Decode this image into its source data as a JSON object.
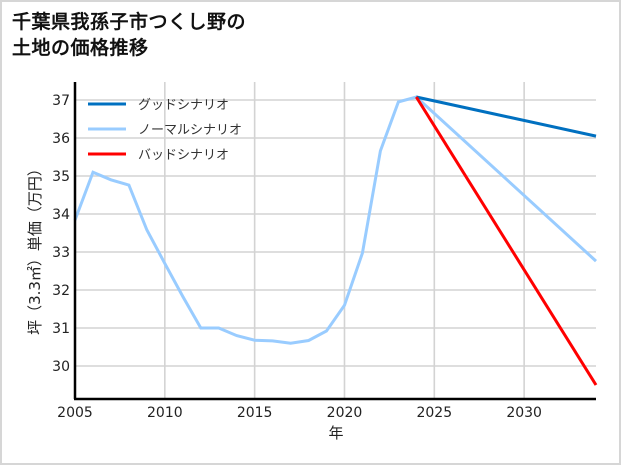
{
  "title": "千葉県我孫子市つくし野の\n土地の価格推移",
  "chart_data": {
    "type": "line",
    "title": "千葉県我孫子市つくし野の土地の価格推移",
    "xlabel": "年",
    "ylabel": "坪（3.3㎡）単価（万円）",
    "xlim": [
      2005,
      2034
    ],
    "ylim": [
      29.1,
      37.45
    ],
    "xticks": [
      2005,
      2010,
      2015,
      2020,
      2025,
      2030
    ],
    "yticks": [
      30,
      31,
      32,
      33,
      34,
      35,
      36,
      37
    ],
    "grid": true,
    "legend_position": "upper left",
    "series": [
      {
        "name": "グッドシナリオ",
        "color": "#0070c0",
        "x": [
          2024,
          2034
        ],
        "values": [
          37.08,
          36.05
        ]
      },
      {
        "name": "ノーマルシナリオ",
        "color": "#99ccff",
        "x": [
          2005,
          2006,
          2007,
          2008,
          2009,
          2010,
          2011,
          2012,
          2013,
          2014,
          2015,
          2016,
          2017,
          2018,
          2019,
          2020,
          2021,
          2022,
          2023,
          2024,
          2034
        ],
        "values": [
          33.84,
          35.1,
          34.9,
          34.76,
          33.58,
          32.7,
          31.83,
          31.0,
          31.0,
          30.8,
          30.68,
          30.66,
          30.6,
          30.67,
          30.92,
          31.6,
          32.97,
          35.66,
          36.95,
          37.08,
          32.76
        ]
      },
      {
        "name": "バッドシナリオ",
        "color": "#ff0000",
        "x": [
          2024,
          2034
        ],
        "values": [
          37.08,
          29.5
        ]
      }
    ]
  }
}
